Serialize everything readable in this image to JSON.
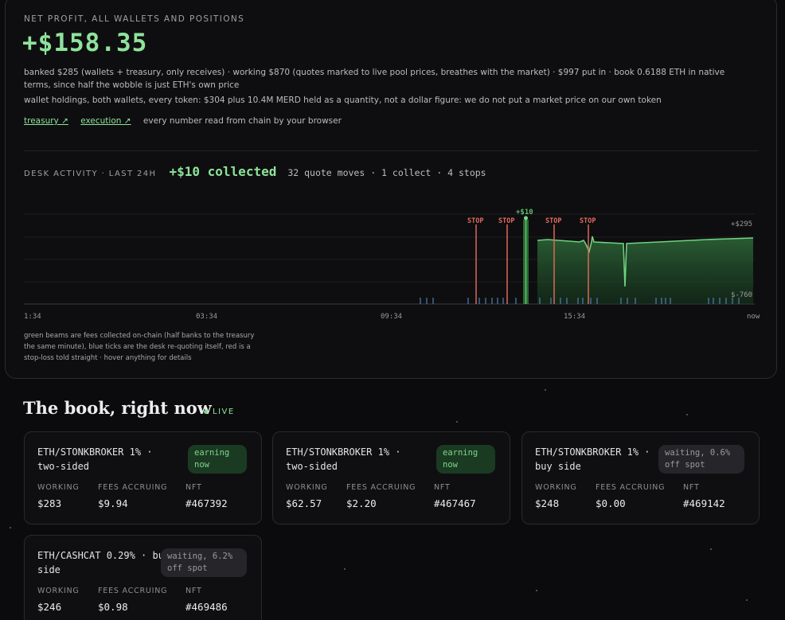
{
  "header": {
    "kicker": "NET PROFIT, ALL WALLETS AND POSITIONS",
    "profit": "+$158.35",
    "summary": "banked $285 (wallets + treasury, only receives) · working $870 (quotes marked to live pool prices, breathes with the market) · $997 put in · book 0.6188 ETH in native terms, since half the wobble is just ETH's own price",
    "holdings": "wallet holdings, both wallets, every token: $304 plus 10.4M MERD held as a quantity, not a dollar figure: we do not put a market price on our own token",
    "links": {
      "treasury": "treasury ↗",
      "execution": "execution ↗"
    },
    "chain_note": "every number read from chain by your browser"
  },
  "desk": {
    "label": "DESK ACTIVITY · LAST 24H",
    "collected": "+$10 collected",
    "stats": "32 quote moves · 1 collect · 4 stops"
  },
  "chart_data": {
    "type": "line",
    "x_ticks": [
      "1:34",
      "03:34",
      "09:34",
      "15:34",
      "now"
    ],
    "y_labels": [
      "+$295",
      "$-760"
    ],
    "stop_label": "STOP",
    "fee_label": "+$10",
    "stops": [
      "STOP",
      "STOP",
      "STOP",
      "STOP"
    ],
    "fee_collect": "+$10",
    "colors": {
      "line": "#6fd07f",
      "stop": "#d9695a",
      "fee": "#3fa04f",
      "tick": "#4a78a8"
    }
  },
  "legend": "green beams are fees collected on-chain (half banks to the treasury the same minute), blue ticks are the desk re-quoting itself, red is a stop-loss told straight · hover anything for details",
  "book": {
    "title": "The book, right now",
    "live": "LIVE",
    "col_working": "WORKING",
    "col_fees": "FEES ACCRUING",
    "col_nft": "NFT",
    "positions": [
      {
        "name": "ETH/STONKBROKER 1% · two-sided",
        "status": "earning now",
        "working": "$283",
        "fees": "$9.94",
        "nft": "#467392"
      },
      {
        "name": "ETH/STONKBROKER 1% · two-sided",
        "status": "earning now",
        "working": "$62.57",
        "fees": "$2.20",
        "nft": "#467467"
      },
      {
        "name": "ETH/STONKBROKER 1% · buy side",
        "status": "waiting, 0.6% off spot",
        "working": "$248",
        "fees": "$0.00",
        "nft": "#469142"
      },
      {
        "name": "ETH/CASHCAT 0.29% · buy side",
        "status": "waiting, 6.2% off spot",
        "working": "$246",
        "fees": "$0.98",
        "nft": "#469486"
      }
    ]
  }
}
